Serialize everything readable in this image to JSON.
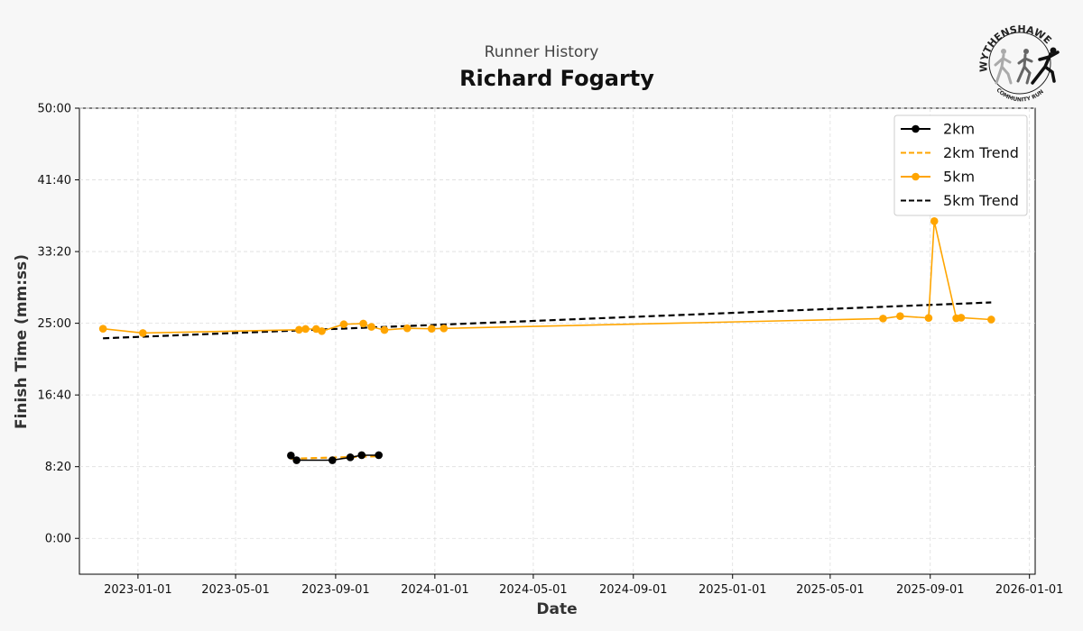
{
  "header": {
    "subtitle": "Runner History",
    "title": "Richard Fogarty"
  },
  "logo": {
    "text_top": "WYTHENSHAWE",
    "text_bottom": "COMMUNITY RUN"
  },
  "chart_data": {
    "type": "line",
    "subtitle": "Runner History",
    "title": "Richard Fogarty",
    "xlabel": "Date",
    "ylabel": "Finish Time (mm:ss)",
    "y_unit": "seconds",
    "xlim": [
      "2022-10-21",
      "2026-01-08"
    ],
    "ylim": [
      -250,
      3000
    ],
    "x_ticks": [
      "2023-01-01",
      "2023-05-01",
      "2023-09-01",
      "2024-01-01",
      "2024-05-01",
      "2024-09-01",
      "2025-01-01",
      "2025-05-01",
      "2025-09-01",
      "2026-01-01"
    ],
    "y_ticks": [
      0,
      500,
      1000,
      1500,
      2000,
      2500,
      3000
    ],
    "y_tick_labels": [
      "0:00",
      "8:20",
      "16:40",
      "25:00",
      "33:20",
      "41:40",
      "50:00"
    ],
    "grid": true,
    "legend_position": "top-right",
    "series": [
      {
        "name": "2km",
        "color": "#000000",
        "style": "solid-markers",
        "points": [
          {
            "x": "2023-07-08",
            "y": 578
          },
          {
            "x": "2023-07-15",
            "y": 545
          },
          {
            "x": "2023-08-28",
            "y": 545
          },
          {
            "x": "2023-09-19",
            "y": 565
          },
          {
            "x": "2023-10-03",
            "y": 580
          },
          {
            "x": "2023-10-24",
            "y": 580
          }
        ]
      },
      {
        "name": "2km Trend",
        "color": "#ffa500",
        "style": "dashed",
        "points": [
          {
            "x": "2023-07-08",
            "y": 555
          },
          {
            "x": "2023-10-24",
            "y": 573
          }
        ]
      },
      {
        "name": "5km",
        "color": "#ffa500",
        "style": "solid-markers",
        "points": [
          {
            "x": "2022-11-19",
            "y": 1462
          },
          {
            "x": "2023-01-07",
            "y": 1432
          },
          {
            "x": "2023-07-18",
            "y": 1455
          },
          {
            "x": "2023-07-26",
            "y": 1460
          },
          {
            "x": "2023-08-08",
            "y": 1460
          },
          {
            "x": "2023-08-15",
            "y": 1445
          },
          {
            "x": "2023-09-11",
            "y": 1493
          },
          {
            "x": "2023-10-05",
            "y": 1498
          },
          {
            "x": "2023-10-15",
            "y": 1475
          },
          {
            "x": "2023-10-31",
            "y": 1453
          },
          {
            "x": "2023-11-28",
            "y": 1465
          },
          {
            "x": "2023-12-28",
            "y": 1462
          },
          {
            "x": "2024-01-12",
            "y": 1464
          },
          {
            "x": "2025-07-05",
            "y": 1533
          },
          {
            "x": "2025-07-26",
            "y": 1550
          },
          {
            "x": "2025-08-30",
            "y": 1537
          },
          {
            "x": "2025-09-06",
            "y": 2212
          },
          {
            "x": "2025-10-03",
            "y": 1535
          },
          {
            "x": "2025-10-09",
            "y": 1539
          },
          {
            "x": "2025-11-15",
            "y": 1526
          }
        ]
      },
      {
        "name": "5km Trend",
        "color": "#000000",
        "style": "dashed",
        "points": [
          {
            "x": "2022-11-19",
            "y": 1395
          },
          {
            "x": "2025-11-15",
            "y": 1645
          }
        ]
      }
    ]
  }
}
